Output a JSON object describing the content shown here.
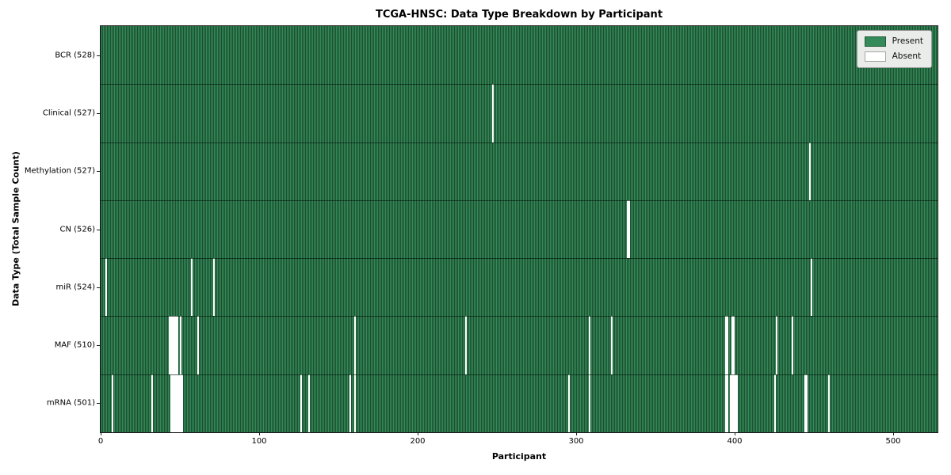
{
  "title": "TCGA-HNSC: Data Type Breakdown by Participant",
  "xlabel": "Participant",
  "ylabel": "Data Type (Total Sample Count)",
  "legend": {
    "present_label": "Present",
    "absent_label": "Absent"
  },
  "colors": {
    "present_fill": "#348a58",
    "bar_edge": "#1c4f31",
    "absent": "#ffffff",
    "legend_bg": "#e9ece9",
    "legend_border": "#9a9a9a",
    "frame": "#1a1a1a"
  },
  "chart_data": {
    "type": "heatmap",
    "title": "TCGA-HNSC: Data Type Breakdown by Participant",
    "xlabel": "Participant",
    "ylabel": "Data Type (Total Sample Count)",
    "x_ticks": [
      0,
      100,
      200,
      300,
      400,
      500
    ],
    "x_range": [
      0,
      528
    ],
    "n_participants": 528,
    "grid": false,
    "legend_position": "upper right",
    "legend_entries": [
      {
        "label": "Present",
        "color": "#348a58"
      },
      {
        "label": "Absent",
        "color": "#ffffff"
      }
    ],
    "rows": [
      {
        "label": "BCR (528)",
        "data_type": "BCR",
        "present_count": 528,
        "absent_count": 0,
        "absent_participants": []
      },
      {
        "label": "Clinical (527)",
        "data_type": "Clinical",
        "present_count": 527,
        "absent_count": 1,
        "absent_participants": [
          247
        ]
      },
      {
        "label": "Methylation (527)",
        "data_type": "Methylation",
        "present_count": 527,
        "absent_count": 1,
        "absent_participants": [
          447
        ]
      },
      {
        "label": "CN (526)",
        "data_type": "CN",
        "present_count": 526,
        "absent_count": 2,
        "absent_participants": [
          332,
          333
        ]
      },
      {
        "label": "miR (524)",
        "data_type": "miR",
        "present_count": 524,
        "absent_count": 4,
        "absent_participants": [
          3,
          57,
          71,
          448
        ]
      },
      {
        "label": "MAF (510)",
        "data_type": "MAF",
        "present_count": 510,
        "absent_count": 18,
        "absent_participants": [
          43,
          44,
          45,
          46,
          47,
          48,
          50,
          61,
          160,
          230,
          308,
          322,
          394,
          395,
          398,
          399,
          426,
          436
        ]
      },
      {
        "label": "mRNA (501)",
        "data_type": "mRNA",
        "present_count": 501,
        "absent_count": 27,
        "absent_participants": [
          7,
          32,
          44,
          45,
          46,
          47,
          48,
          49,
          50,
          51,
          126,
          131,
          157,
          160,
          295,
          308,
          394,
          395,
          397,
          398,
          399,
          400,
          401,
          425,
          444,
          445,
          459
        ]
      }
    ]
  }
}
